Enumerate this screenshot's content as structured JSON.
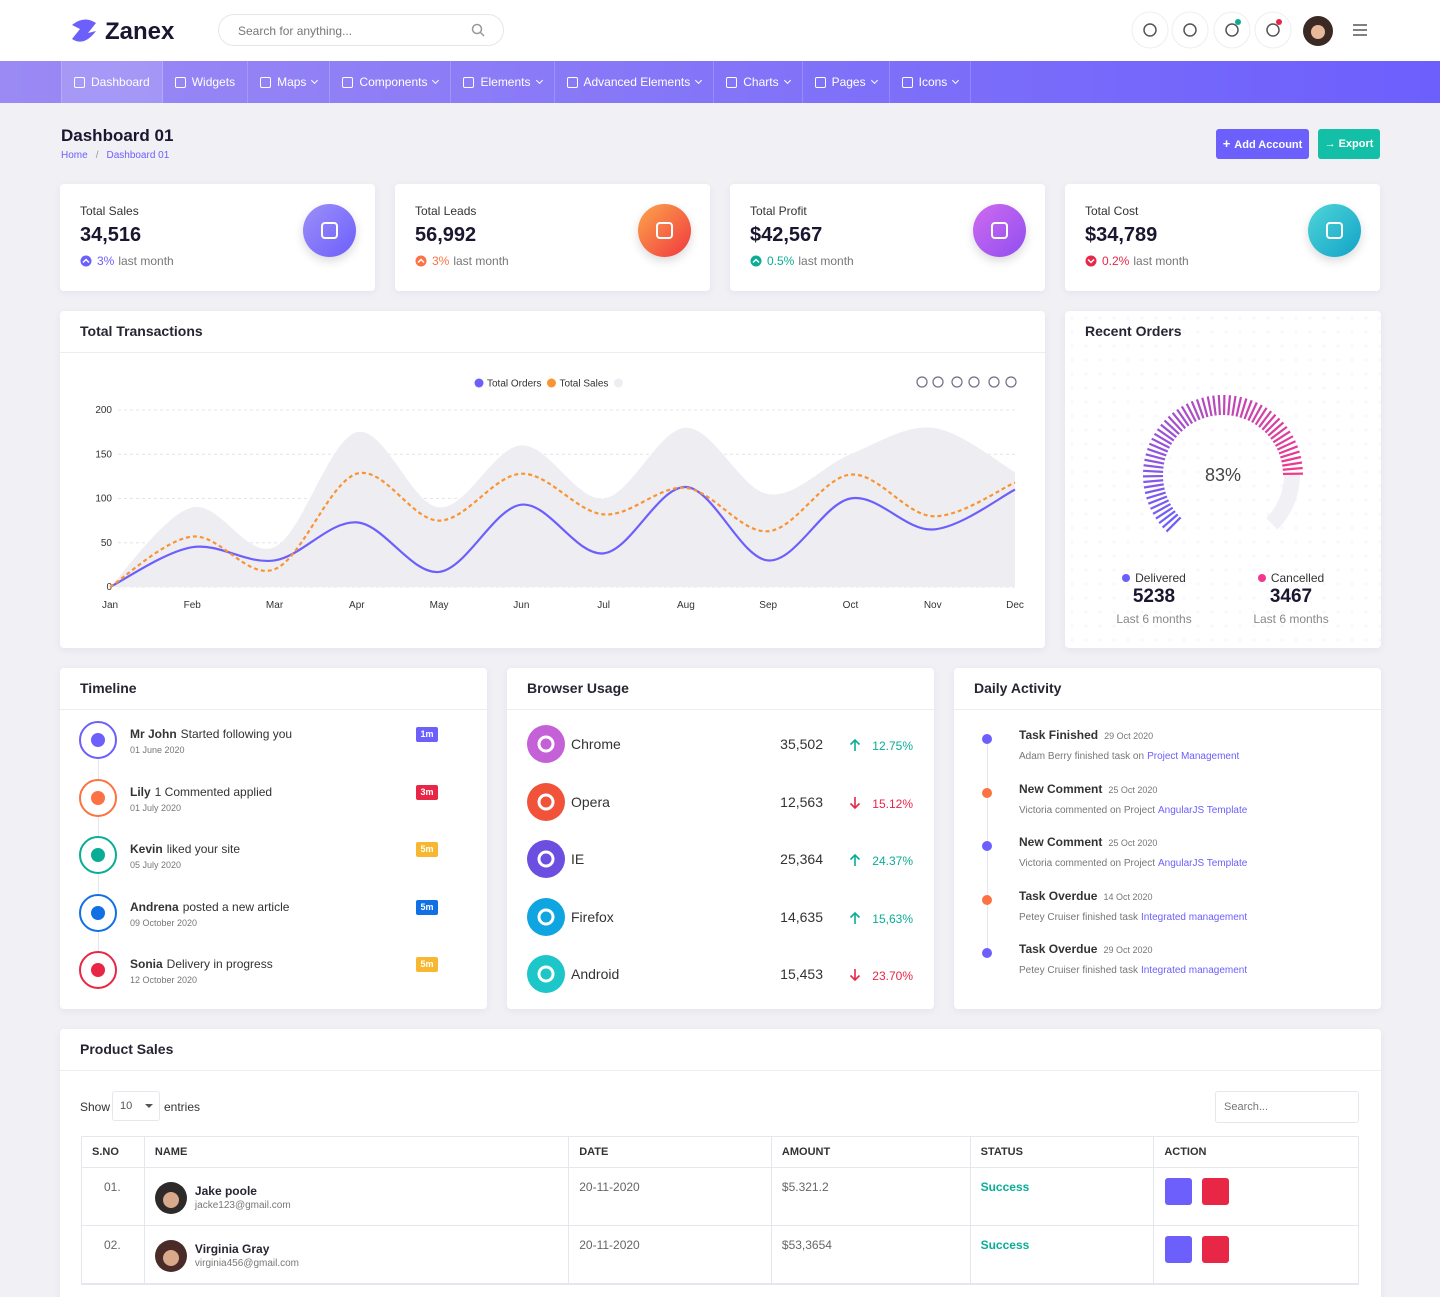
{
  "header": {
    "logo": "Zanex",
    "search_placeholder": "Search for anything..."
  },
  "nav": [
    "Dashboard",
    "Widgets",
    "Maps",
    "Components",
    "Elements",
    "Advanced Elements",
    "Charts",
    "Pages",
    "Icons"
  ],
  "page": {
    "title": "Dashboard 01",
    "breadcrumb": [
      "Home",
      "Dashboard 01"
    ],
    "buttons": [
      "Add Account",
      "Export"
    ]
  },
  "stats": [
    {
      "label": "Total Sales",
      "value": "34,516",
      "change": "3%",
      "note": "last month",
      "trend": "up",
      "color": "#6c5ffc"
    },
    {
      "label": "Total Leads",
      "value": "56,992",
      "change": "3%",
      "note": "last month",
      "trend": "up",
      "color": "#fc7242"
    },
    {
      "label": "Total Profit",
      "value": "$42,567",
      "change": "0.5%",
      "note": "last month",
      "trend": "up",
      "color": "#09ad95"
    },
    {
      "label": "Total Cost",
      "value": "$34,789",
      "change": "0.2%",
      "note": "last month",
      "trend": "down",
      "color": "#e82646"
    }
  ],
  "transactions": {
    "title": "Total Transactions",
    "type": "line",
    "categories": [
      "Jan",
      "Feb",
      "Mar",
      "Apr",
      "May",
      "Jun",
      "Jul",
      "Aug",
      "Sep",
      "Oct",
      "Nov",
      "Dec"
    ],
    "series": [
      {
        "name": "Total Orders",
        "color": "#6c5ffc",
        "values": [
          0,
          45,
          30,
          73,
          17,
          93,
          38,
          113,
          30,
          100,
          65,
          110
        ]
      },
      {
        "name": "Total Sales",
        "color": "#f99433",
        "dashed": true,
        "values": [
          0,
          57,
          20,
          128,
          75,
          128,
          82,
          112,
          63,
          127,
          80,
          118
        ]
      },
      {
        "color": "#eeeef2",
        "area": true,
        "values": [
          0,
          90,
          45,
          175,
          90,
          160,
          100,
          180,
          105,
          150,
          180,
          130
        ]
      }
    ],
    "ylim": [
      0,
      200
    ],
    "yticks": [
      0,
      50,
      100,
      150,
      200
    ],
    "grid": true
  },
  "recent_orders": {
    "title": "Recent Orders",
    "gauge_value": 83,
    "gauge_label": "83%",
    "items": [
      {
        "label": "Delivered",
        "value": "5238",
        "note": "Last 6 months",
        "color": "#6c5ffc"
      },
      {
        "label": "Cancelled",
        "value": "3467",
        "note": "Last 6 months",
        "color": "#f1388b"
      }
    ]
  },
  "timeline": {
    "title": "Timeline",
    "items": [
      {
        "name": "Mr John",
        "text": "Started following you",
        "date": "01 June 2020",
        "time": "1m",
        "color": "#6c5ffc",
        "badge_color": "#6c5ffc"
      },
      {
        "name": "Lily",
        "text": "1 Commented applied",
        "date": "01 July 2020",
        "time": "3m",
        "color": "#fc7242",
        "badge_color": "#e82646"
      },
      {
        "name": "Kevin",
        "text": "liked your site",
        "date": "05 July 2020",
        "time": "5m",
        "color": "#09ad95",
        "badge_color": "#f7b731"
      },
      {
        "name": "Andrena",
        "text": "posted a new article",
        "date": "09 October 2020",
        "time": "5m",
        "color": "#1170e4",
        "badge_color": "#1170e4"
      },
      {
        "name": "Sonia",
        "text": "Delivery in progress",
        "date": "12 October 2020",
        "time": "5m",
        "color": "#e82646",
        "badge_color": "#f7b731"
      }
    ]
  },
  "browsers": {
    "title": "Browser Usage",
    "items": [
      {
        "name": "Chrome",
        "count": "35,502",
        "change": "12.75%",
        "trend": "up",
        "color": "#c561d6"
      },
      {
        "name": "Opera",
        "count": "12,563",
        "change": "15.12%",
        "trend": "down",
        "color": "#f0533a"
      },
      {
        "name": "IE",
        "count": "25,364",
        "change": "24.37%",
        "trend": "up",
        "color": "#6c4ee0"
      },
      {
        "name": "Firefox",
        "count": "14,635",
        "change": "15,63%",
        "trend": "up",
        "color": "#0fa5e0"
      },
      {
        "name": "Android",
        "count": "15,453",
        "change": "23.70%",
        "trend": "down",
        "color": "#1cc6c9"
      }
    ]
  },
  "activity": {
    "title": "Daily Activity",
    "items": [
      {
        "title": "Task Finished",
        "date": "29 Oct 2020",
        "text": "Adam Berry finished task on",
        "link": "Project Management",
        "color": "#6c5ffc"
      },
      {
        "title": "New Comment",
        "date": "25 Oct 2020",
        "text": "Victoria commented on Project",
        "link": "AngularJS Template",
        "color": "#fc7242"
      },
      {
        "title": "New Comment",
        "date": "25 Oct 2020",
        "text": "Victoria commented on Project",
        "link": "AngularJS Template",
        "color": "#6c5ffc"
      },
      {
        "title": "Task Overdue",
        "date": "14 Oct 2020",
        "text": "Petey Cruiser finished task",
        "link": "Integrated management",
        "color": "#fc7242"
      },
      {
        "title": "Task Overdue",
        "date": "29 Oct 2020",
        "text": "Petey Cruiser finished task",
        "link": "Integrated management",
        "color": "#6c5ffc"
      }
    ]
  },
  "product_sales": {
    "title": "Product Sales",
    "show": "Show",
    "entries_value": "10",
    "entries": "entries",
    "search_placeholder": "Search...",
    "columns": [
      "S.NO",
      "NAME",
      "DATE",
      "AMOUNT",
      "STATUS",
      "ACTION"
    ],
    "rows": [
      {
        "sno": "01.",
        "name": "Jake poole",
        "email": "jacke123@gmail.com",
        "date": "20-11-2020",
        "amount": "$5.321.2",
        "status": "Success"
      },
      {
        "sno": "02.",
        "name": "Virginia Gray",
        "email": "virginia456@gmail.com",
        "date": "20-11-2020",
        "amount": "$53,3654",
        "status": "Success"
      }
    ]
  }
}
